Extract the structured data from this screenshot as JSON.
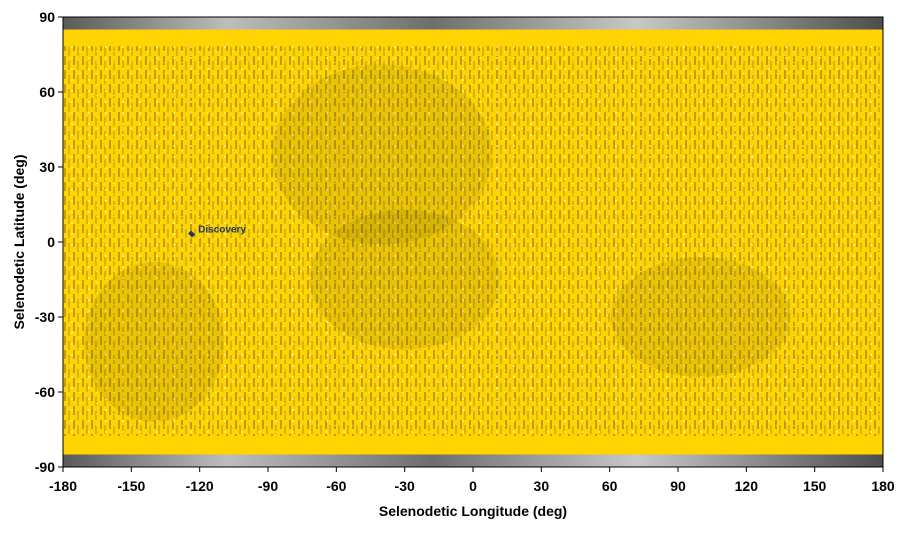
{
  "chart_data": {
    "type": "scatter",
    "title": "",
    "xlabel": "Selenodetic Longitude (deg)",
    "ylabel": "Selenodetic Latitude (deg)",
    "xlim": [
      -180,
      180
    ],
    "ylim": [
      -90,
      90
    ],
    "xticks": [
      -180,
      -150,
      -120,
      -90,
      -60,
      -30,
      0,
      30,
      60,
      90,
      120,
      150,
      180
    ],
    "yticks": [
      90,
      60,
      30,
      0,
      -30,
      -60,
      -90
    ],
    "xtick_labels": [
      "-180",
      "-150",
      "-120",
      "-90",
      "-60",
      "-30",
      "0",
      "30",
      "60",
      "90",
      "120",
      "150",
      "180"
    ],
    "ytick_labels": [
      "90",
      "60",
      "30",
      "0",
      "-30",
      "-60",
      "-90"
    ],
    "grid": false,
    "coverage": {
      "description_color": "#ffd400",
      "lat_extent": [
        -85,
        85
      ],
      "note": "dense ground-track coverage over a lunar surface map"
    },
    "annotation": {
      "text": "Discovery",
      "lon": -122,
      "lat": 3
    }
  },
  "colors": {
    "coverage": "#ffd400",
    "track": "#1a1a1a",
    "map_gray": "#9a9a9a",
    "site_label": "#1f3a64"
  }
}
